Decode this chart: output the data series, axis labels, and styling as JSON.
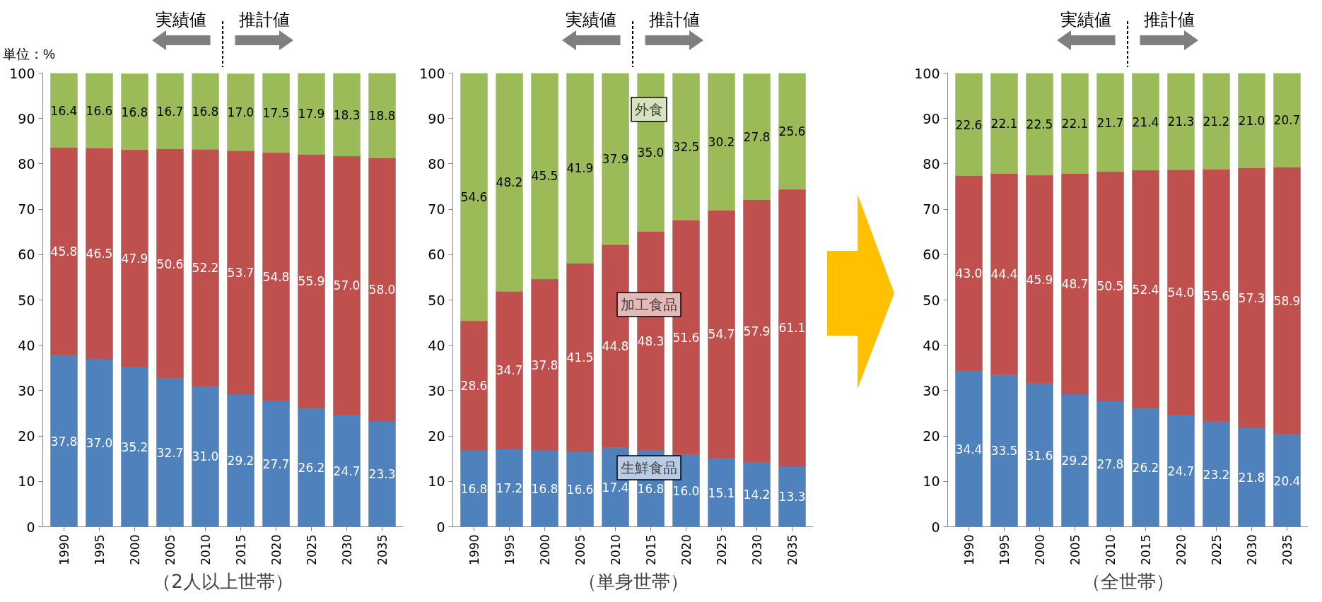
{
  "chart_data": [
    {
      "type": "bar",
      "stacked": true,
      "xlabel": "（2人以上世帯）",
      "ylabel": "単位：%",
      "annotations": [
        "実績値",
        "推計値"
      ],
      "categories": [
        "1990",
        "1995",
        "2000",
        "2005",
        "2010",
        "2015",
        "2020",
        "2025",
        "2030",
        "2035"
      ],
      "ylim": [
        0,
        100
      ],
      "yticks": [
        0,
        10,
        20,
        30,
        40,
        50,
        60,
        70,
        80,
        90,
        100
      ],
      "series": [
        {
          "color": "#4f81bd",
          "values": [
            37.8,
            37.0,
            35.2,
            32.7,
            31.0,
            29.2,
            27.7,
            26.2,
            24.7,
            23.3
          ],
          "value_labels": [
            "37.8",
            "37.0",
            "35.2",
            "32.7",
            "31.0",
            "29.2",
            "27.7",
            "26.2",
            "24.7",
            "23.3"
          ]
        },
        {
          "color": "#c0504d",
          "values": [
            45.8,
            46.5,
            47.9,
            50.6,
            52.2,
            53.7,
            54.8,
            55.9,
            57.0,
            58.0
          ],
          "value_labels": [
            "45.8",
            "46.5",
            "47.9",
            "50.6",
            "52.2",
            "53.7",
            "54.8",
            "55.9",
            "57.0",
            "58.0"
          ]
        },
        {
          "color": "#9bbb59",
          "values": [
            16.4,
            16.6,
            16.8,
            16.7,
            16.8,
            17.0,
            17.5,
            17.9,
            18.3,
            18.8
          ],
          "value_labels": [
            "16.4",
            "16.6",
            "16.8",
            "16.7",
            "16.8",
            "17.0",
            "17.5",
            "17.9",
            "18.3",
            "18.8"
          ]
        }
      ]
    },
    {
      "type": "bar",
      "stacked": true,
      "xlabel": "（単身世帯）",
      "annotations": [
        "実績値",
        "推計値"
      ],
      "categories": [
        "1990",
        "1995",
        "2000",
        "2005",
        "2010",
        "2015",
        "2020",
        "2025",
        "2030",
        "2035"
      ],
      "ylim": [
        0,
        100
      ],
      "yticks": [
        0,
        10,
        20,
        30,
        40,
        50,
        60,
        70,
        80,
        90,
        100
      ],
      "series": [
        {
          "name": "生鮮食品",
          "color": "#4f81bd",
          "values": [
            16.8,
            17.2,
            16.8,
            16.6,
            17.4,
            16.8,
            16.0,
            15.1,
            14.2,
            13.3
          ],
          "value_labels": [
            "16.8",
            "17.2",
            "16.8",
            "16.6",
            "17.4",
            "16.8",
            "16.0",
            "15.1",
            "14.2",
            "13.3"
          ]
        },
        {
          "name": "加工食品",
          "color": "#c0504d",
          "values": [
            28.6,
            34.7,
            37.8,
            41.5,
            44.8,
            48.3,
            51.6,
            54.7,
            57.9,
            61.1
          ],
          "value_labels": [
            "28.6",
            "34.7",
            "37.8",
            "41.5",
            "44.8",
            "48.3",
            "51.6",
            "54.7",
            "57.9",
            "61.1"
          ]
        },
        {
          "name": "外食",
          "color": "#9bbb59",
          "values": [
            54.6,
            48.2,
            45.5,
            41.9,
            37.9,
            35.0,
            32.5,
            30.2,
            27.8,
            25.6
          ],
          "value_labels": [
            "54.6",
            "48.2",
            "45.5",
            "41.9",
            "37.9",
            "35.0",
            "32.5",
            "30.2",
            "27.8",
            "25.6"
          ]
        }
      ]
    },
    {
      "type": "bar",
      "stacked": true,
      "xlabel": "（全世帯）",
      "annotations": [
        "実績値",
        "推計値"
      ],
      "categories": [
        "1990",
        "1995",
        "2000",
        "2005",
        "2010",
        "2015",
        "2020",
        "2025",
        "2030",
        "2035"
      ],
      "ylim": [
        0,
        100
      ],
      "yticks": [
        0,
        10,
        20,
        30,
        40,
        50,
        60,
        70,
        80,
        90,
        100
      ],
      "series": [
        {
          "color": "#4f81bd",
          "values": [
            34.4,
            33.5,
            31.6,
            29.2,
            27.8,
            26.2,
            24.7,
            23.2,
            21.8,
            20.4
          ],
          "value_labels": [
            "34.4",
            "33.5",
            "31.6",
            "29.2",
            "27.8",
            "26.2",
            "24.7",
            "23.2",
            "21.8",
            "20.4"
          ]
        },
        {
          "color": "#c0504d",
          "values": [
            43.0,
            44.4,
            45.9,
            48.7,
            50.5,
            52.4,
            54.0,
            55.6,
            57.3,
            58.9
          ],
          "value_labels": [
            "43.0",
            "44.4",
            "45.9",
            "48.7",
            "50.5",
            "52.4",
            "54.0",
            "55.6",
            "57.3",
            "58.9"
          ]
        },
        {
          "color": "#9bbb59",
          "values": [
            22.6,
            22.1,
            22.5,
            22.1,
            21.7,
            21.4,
            21.3,
            21.2,
            21.0,
            20.7
          ],
          "value_labels": [
            "22.6",
            "22.1",
            "22.5",
            "22.1",
            "21.7",
            "21.4",
            "21.3",
            "21.2",
            "21.0",
            "20.7"
          ]
        }
      ]
    }
  ]
}
